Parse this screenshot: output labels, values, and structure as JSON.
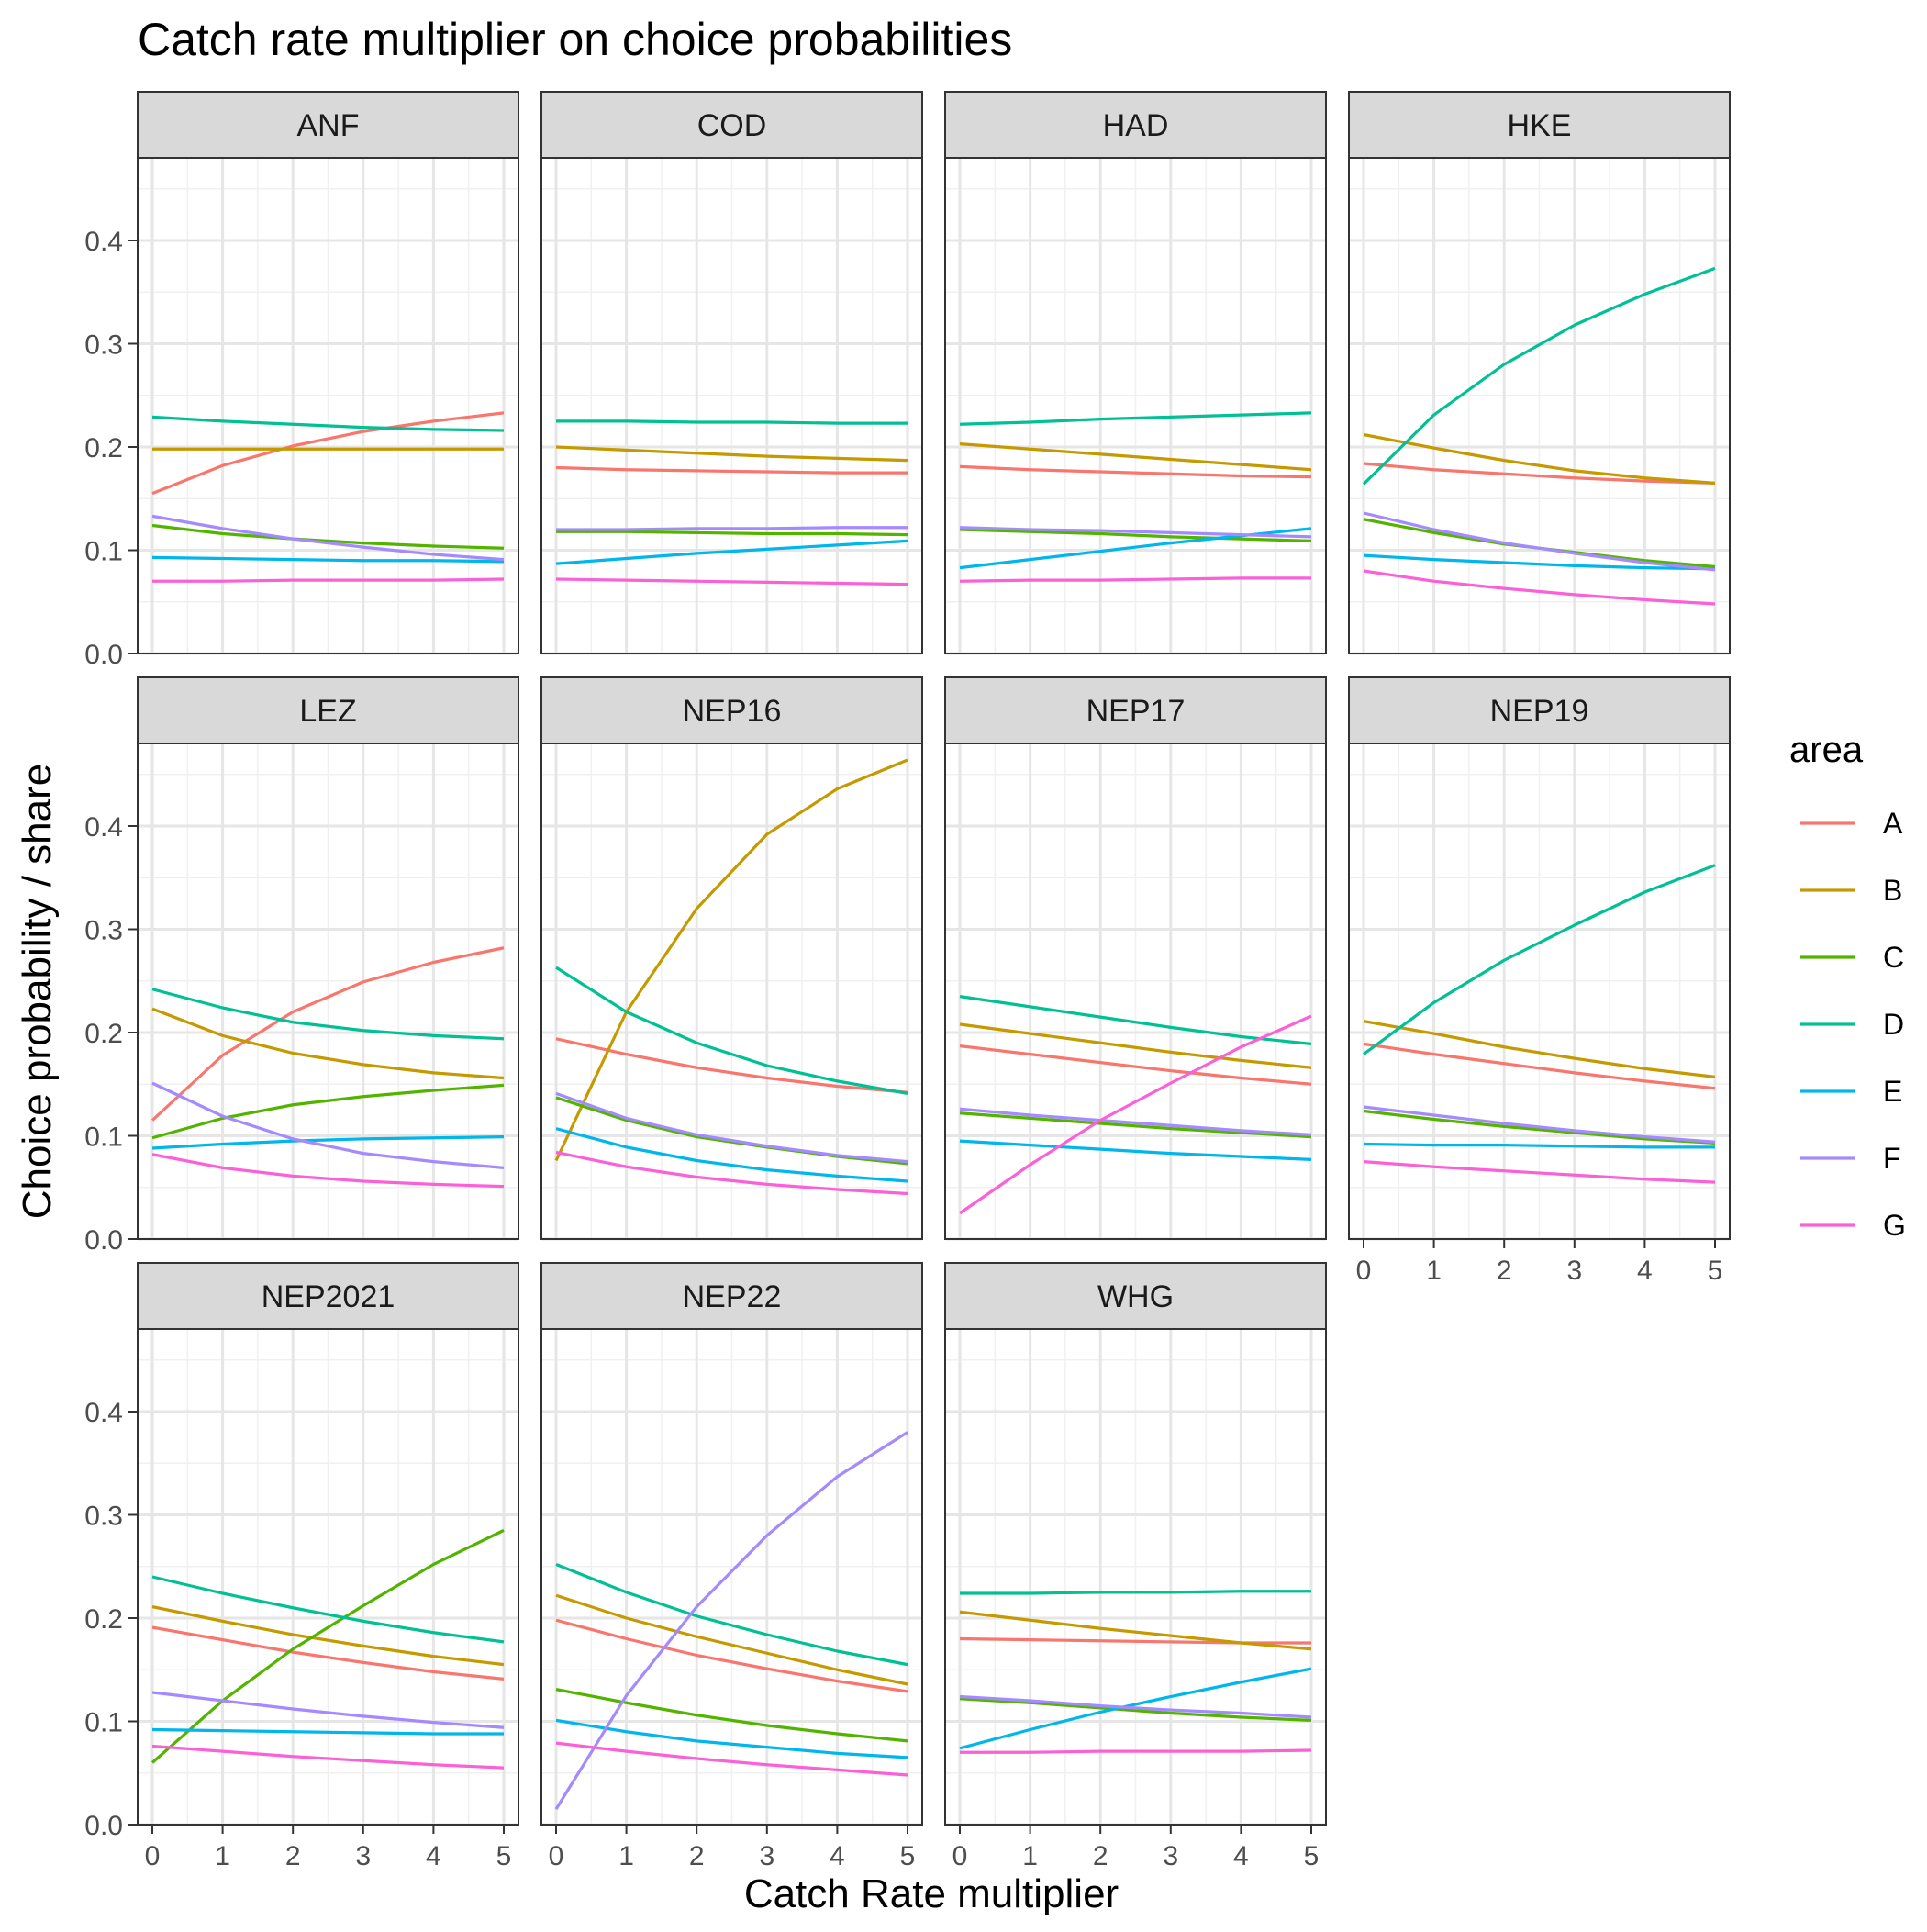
{
  "chart_data": {
    "type": "line",
    "title": "Catch rate multiplier on choice probabilities",
    "xlabel": "Catch Rate multiplier",
    "ylabel": "Choice probability / share",
    "xlim": [
      0,
      5
    ],
    "ylim": [
      0,
      0.48
    ],
    "x_ticks": [
      0,
      1,
      2,
      3,
      4,
      5
    ],
    "y_ticks": [
      0.0,
      0.1,
      0.2,
      0.3,
      0.4
    ],
    "x_tick_labels": [
      "0",
      "1",
      "2",
      "3",
      "4",
      "5"
    ],
    "y_tick_labels": [
      "0.0",
      "0.1",
      "0.2",
      "0.3",
      "0.4"
    ],
    "grid": true,
    "legend": {
      "title": "area",
      "position": "right",
      "entries": [
        {
          "name": "A",
          "color": "#F8766D"
        },
        {
          "name": "B",
          "color": "#C49A00"
        },
        {
          "name": "C",
          "color": "#53B400"
        },
        {
          "name": "D",
          "color": "#00C094"
        },
        {
          "name": "E",
          "color": "#00B6EB"
        },
        {
          "name": "F",
          "color": "#A58AFF"
        },
        {
          "name": "G",
          "color": "#FB61D7"
        }
      ]
    },
    "x": [
      0,
      1,
      2,
      3,
      4,
      5
    ],
    "facets": [
      {
        "name": "ANF",
        "series": {
          "A": [
            0.155,
            0.182,
            0.201,
            0.215,
            0.225,
            0.233
          ],
          "B": [
            0.198,
            0.198,
            0.198,
            0.198,
            0.198,
            0.198
          ],
          "C": [
            0.124,
            0.116,
            0.111,
            0.107,
            0.104,
            0.102
          ],
          "D": [
            0.229,
            0.225,
            0.222,
            0.219,
            0.217,
            0.216
          ],
          "E": [
            0.093,
            0.092,
            0.091,
            0.09,
            0.09,
            0.089
          ],
          "F": [
            0.133,
            0.121,
            0.111,
            0.103,
            0.096,
            0.091
          ],
          "G": [
            0.07,
            0.07,
            0.071,
            0.071,
            0.071,
            0.072
          ]
        }
      },
      {
        "name": "COD",
        "series": {
          "A": [
            0.18,
            0.178,
            0.177,
            0.176,
            0.175,
            0.175
          ],
          "B": [
            0.2,
            0.197,
            0.194,
            0.191,
            0.189,
            0.187
          ],
          "C": [
            0.118,
            0.118,
            0.117,
            0.116,
            0.116,
            0.115
          ],
          "D": [
            0.225,
            0.225,
            0.224,
            0.224,
            0.223,
            0.223
          ],
          "E": [
            0.087,
            0.092,
            0.097,
            0.101,
            0.105,
            0.109
          ],
          "F": [
            0.12,
            0.12,
            0.121,
            0.121,
            0.122,
            0.122
          ],
          "G": [
            0.072,
            0.071,
            0.07,
            0.069,
            0.068,
            0.067
          ]
        }
      },
      {
        "name": "HAD",
        "series": {
          "A": [
            0.181,
            0.178,
            0.176,
            0.174,
            0.172,
            0.171
          ],
          "B": [
            0.203,
            0.198,
            0.193,
            0.188,
            0.183,
            0.178
          ],
          "C": [
            0.12,
            0.118,
            0.116,
            0.113,
            0.111,
            0.109
          ],
          "D": [
            0.222,
            0.224,
            0.227,
            0.229,
            0.231,
            0.233
          ],
          "E": [
            0.083,
            0.091,
            0.099,
            0.107,
            0.114,
            0.121
          ],
          "F": [
            0.122,
            0.12,
            0.119,
            0.117,
            0.115,
            0.113
          ],
          "G": [
            0.07,
            0.071,
            0.071,
            0.072,
            0.073,
            0.073
          ]
        }
      },
      {
        "name": "HKE",
        "series": {
          "A": [
            0.184,
            0.178,
            0.174,
            0.17,
            0.167,
            0.165
          ],
          "B": [
            0.212,
            0.199,
            0.187,
            0.177,
            0.17,
            0.165
          ],
          "C": [
            0.13,
            0.117,
            0.106,
            0.098,
            0.09,
            0.084
          ],
          "D": [
            0.164,
            0.231,
            0.28,
            0.318,
            0.348,
            0.373
          ],
          "E": [
            0.095,
            0.091,
            0.088,
            0.085,
            0.083,
            0.082
          ],
          "F": [
            0.136,
            0.12,
            0.107,
            0.097,
            0.088,
            0.081
          ],
          "G": [
            0.08,
            0.07,
            0.063,
            0.057,
            0.052,
            0.048
          ]
        }
      },
      {
        "name": "LEZ",
        "series": {
          "A": [
            0.115,
            0.178,
            0.22,
            0.249,
            0.268,
            0.282
          ],
          "B": [
            0.223,
            0.197,
            0.18,
            0.169,
            0.161,
            0.156
          ],
          "C": [
            0.098,
            0.117,
            0.13,
            0.138,
            0.144,
            0.149
          ],
          "D": [
            0.242,
            0.224,
            0.21,
            0.202,
            0.197,
            0.194
          ],
          "E": [
            0.088,
            0.092,
            0.095,
            0.097,
            0.098,
            0.099
          ],
          "F": [
            0.151,
            0.119,
            0.097,
            0.083,
            0.075,
            0.069
          ],
          "G": [
            0.082,
            0.069,
            0.061,
            0.056,
            0.053,
            0.051
          ]
        }
      },
      {
        "name": "NEP16",
        "series": {
          "A": [
            0.194,
            0.179,
            0.166,
            0.156,
            0.148,
            0.142
          ],
          "B": [
            0.076,
            0.22,
            0.32,
            0.392,
            0.436,
            0.464
          ],
          "C": [
            0.137,
            0.115,
            0.099,
            0.089,
            0.08,
            0.073
          ],
          "D": [
            0.263,
            0.22,
            0.19,
            0.168,
            0.153,
            0.141
          ],
          "E": [
            0.107,
            0.089,
            0.076,
            0.067,
            0.061,
            0.056
          ],
          "F": [
            0.141,
            0.117,
            0.101,
            0.09,
            0.081,
            0.075
          ],
          "G": [
            0.084,
            0.07,
            0.06,
            0.053,
            0.048,
            0.044
          ]
        }
      },
      {
        "name": "NEP17",
        "series": {
          "A": [
            0.187,
            0.179,
            0.171,
            0.163,
            0.156,
            0.15
          ],
          "B": [
            0.208,
            0.199,
            0.19,
            0.181,
            0.173,
            0.166
          ],
          "C": [
            0.122,
            0.117,
            0.112,
            0.107,
            0.103,
            0.099
          ],
          "D": [
            0.235,
            0.225,
            0.215,
            0.205,
            0.196,
            0.189
          ],
          "E": [
            0.095,
            0.091,
            0.087,
            0.083,
            0.08,
            0.077
          ],
          "F": [
            0.126,
            0.12,
            0.115,
            0.11,
            0.105,
            0.101
          ],
          "G": [
            0.025,
            0.072,
            0.115,
            0.151,
            0.186,
            0.216
          ]
        }
      },
      {
        "name": "NEP19",
        "series": {
          "A": [
            0.189,
            0.179,
            0.17,
            0.161,
            0.153,
            0.146
          ],
          "B": [
            0.211,
            0.199,
            0.186,
            0.175,
            0.165,
            0.157
          ],
          "C": [
            0.124,
            0.116,
            0.109,
            0.103,
            0.097,
            0.093
          ],
          "D": [
            0.179,
            0.229,
            0.27,
            0.304,
            0.336,
            0.362
          ],
          "E": [
            0.092,
            0.091,
            0.091,
            0.09,
            0.089,
            0.089
          ],
          "F": [
            0.128,
            0.12,
            0.112,
            0.105,
            0.099,
            0.094
          ],
          "G": [
            0.075,
            0.07,
            0.066,
            0.062,
            0.058,
            0.055
          ]
        }
      },
      {
        "name": "NEP2021",
        "series": {
          "A": [
            0.191,
            0.179,
            0.167,
            0.157,
            0.148,
            0.141
          ],
          "B": [
            0.211,
            0.197,
            0.184,
            0.173,
            0.163,
            0.155
          ],
          "C": [
            0.06,
            0.12,
            0.17,
            0.212,
            0.252,
            0.285
          ],
          "D": [
            0.24,
            0.224,
            0.21,
            0.197,
            0.186,
            0.177
          ],
          "E": [
            0.092,
            0.091,
            0.09,
            0.089,
            0.088,
            0.088
          ],
          "F": [
            0.128,
            0.12,
            0.112,
            0.105,
            0.099,
            0.094
          ],
          "G": [
            0.076,
            0.071,
            0.066,
            0.062,
            0.058,
            0.055
          ]
        }
      },
      {
        "name": "NEP22",
        "series": {
          "A": [
            0.198,
            0.18,
            0.164,
            0.151,
            0.139,
            0.129
          ],
          "B": [
            0.222,
            0.2,
            0.182,
            0.166,
            0.15,
            0.136
          ],
          "C": [
            0.131,
            0.118,
            0.106,
            0.096,
            0.088,
            0.081
          ],
          "D": [
            0.252,
            0.225,
            0.202,
            0.184,
            0.168,
            0.155
          ],
          "E": [
            0.101,
            0.09,
            0.081,
            0.075,
            0.069,
            0.065
          ],
          "F": [
            0.015,
            0.125,
            0.211,
            0.28,
            0.337,
            0.38
          ],
          "G": [
            0.079,
            0.071,
            0.064,
            0.058,
            0.053,
            0.048
          ]
        }
      },
      {
        "name": "WHG",
        "series": {
          "A": [
            0.18,
            0.179,
            0.178,
            0.177,
            0.176,
            0.176
          ],
          "B": [
            0.206,
            0.198,
            0.19,
            0.183,
            0.176,
            0.17
          ],
          "C": [
            0.122,
            0.118,
            0.113,
            0.108,
            0.104,
            0.101
          ],
          "D": [
            0.224,
            0.224,
            0.225,
            0.225,
            0.226,
            0.226
          ],
          "E": [
            0.074,
            0.092,
            0.109,
            0.124,
            0.138,
            0.151
          ],
          "F": [
            0.124,
            0.12,
            0.115,
            0.111,
            0.108,
            0.104
          ],
          "G": [
            0.07,
            0.07,
            0.071,
            0.071,
            0.071,
            0.072
          ]
        }
      }
    ]
  }
}
